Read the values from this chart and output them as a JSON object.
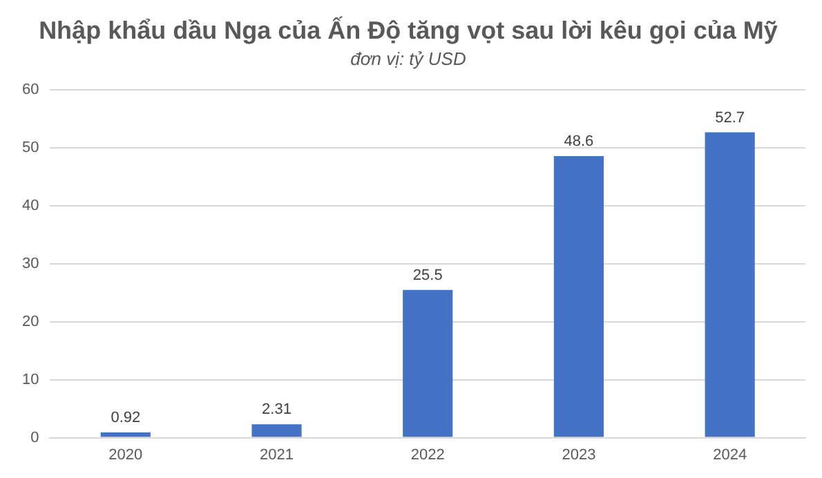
{
  "chart_data": {
    "type": "bar",
    "title": "Nhập khẩu dầu Nga của Ấn Độ tăng vọt sau lời kêu gọi của Mỹ",
    "subtitle": "đơn vị: tỷ USD",
    "categories": [
      "2020",
      "2021",
      "2022",
      "2023",
      "2024"
    ],
    "values": [
      0.92,
      2.31,
      25.5,
      48.6,
      52.7
    ],
    "color": "#4472c4",
    "ylim": [
      0,
      60
    ],
    "yticks": [
      0,
      10,
      20,
      30,
      40,
      50,
      60
    ],
    "grid": "y",
    "data_labels": true,
    "legend": false
  }
}
